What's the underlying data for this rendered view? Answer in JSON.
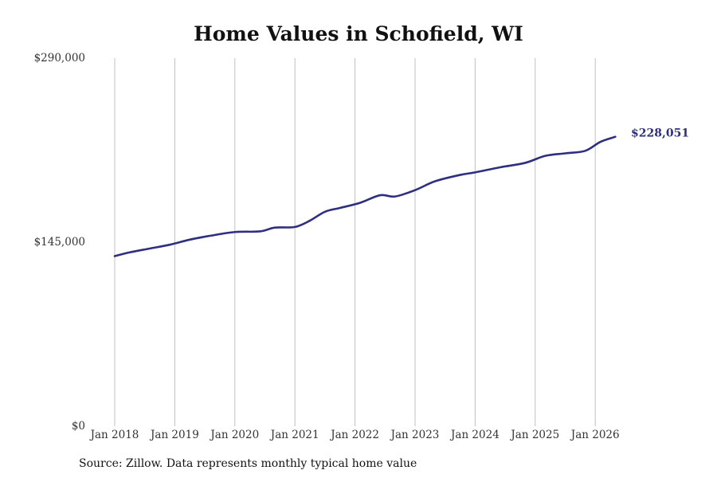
{
  "chart_data": {
    "type": "line",
    "title": "Home Values in Schofield, WI",
    "source": "Source: Zillow. Data represents monthly typical home value",
    "ylim": [
      0,
      290000
    ],
    "y_ticks": [
      0,
      145000,
      290000
    ],
    "y_tick_labels": [
      "$0",
      "$145,000",
      "$290,000"
    ],
    "x_ticks": [
      "2018-01",
      "2019-01",
      "2020-01",
      "2021-01",
      "2022-01",
      "2023-01",
      "2024-01",
      "2025-01",
      "2026-01"
    ],
    "x_tick_labels": [
      "Jan 2018",
      "Jan 2019",
      "Jan 2020",
      "Jan 2021",
      "Jan 2022",
      "Jan 2023",
      "Jan 2024",
      "Jan 2025",
      "Jan 2026"
    ],
    "grid": "vertical",
    "line_color": "#2e2e82",
    "end_label": "$228,051",
    "series": [
      {
        "x": [
          "2018-01",
          "2018-04",
          "2018-08",
          "2018-12",
          "2019-04",
          "2019-08",
          "2020-01",
          "2020-06",
          "2020-09",
          "2021-01",
          "2021-04",
          "2021-07",
          "2021-10",
          "2022-02",
          "2022-06",
          "2022-09",
          "2023-01",
          "2023-05",
          "2023-10",
          "2024-01",
          "2024-06",
          "2024-11",
          "2025-03",
          "2025-07",
          "2025-11",
          "2026-02",
          "2026-05"
        ],
        "y": [
          134000,
          137000,
          140000,
          143000,
          147000,
          150000,
          153000,
          153500,
          156500,
          157000,
          162000,
          169000,
          172000,
          176000,
          182000,
          181000,
          186000,
          193000,
          198000,
          200000,
          204000,
          207500,
          213000,
          215000,
          217000,
          224000,
          228051
        ]
      }
    ]
  }
}
